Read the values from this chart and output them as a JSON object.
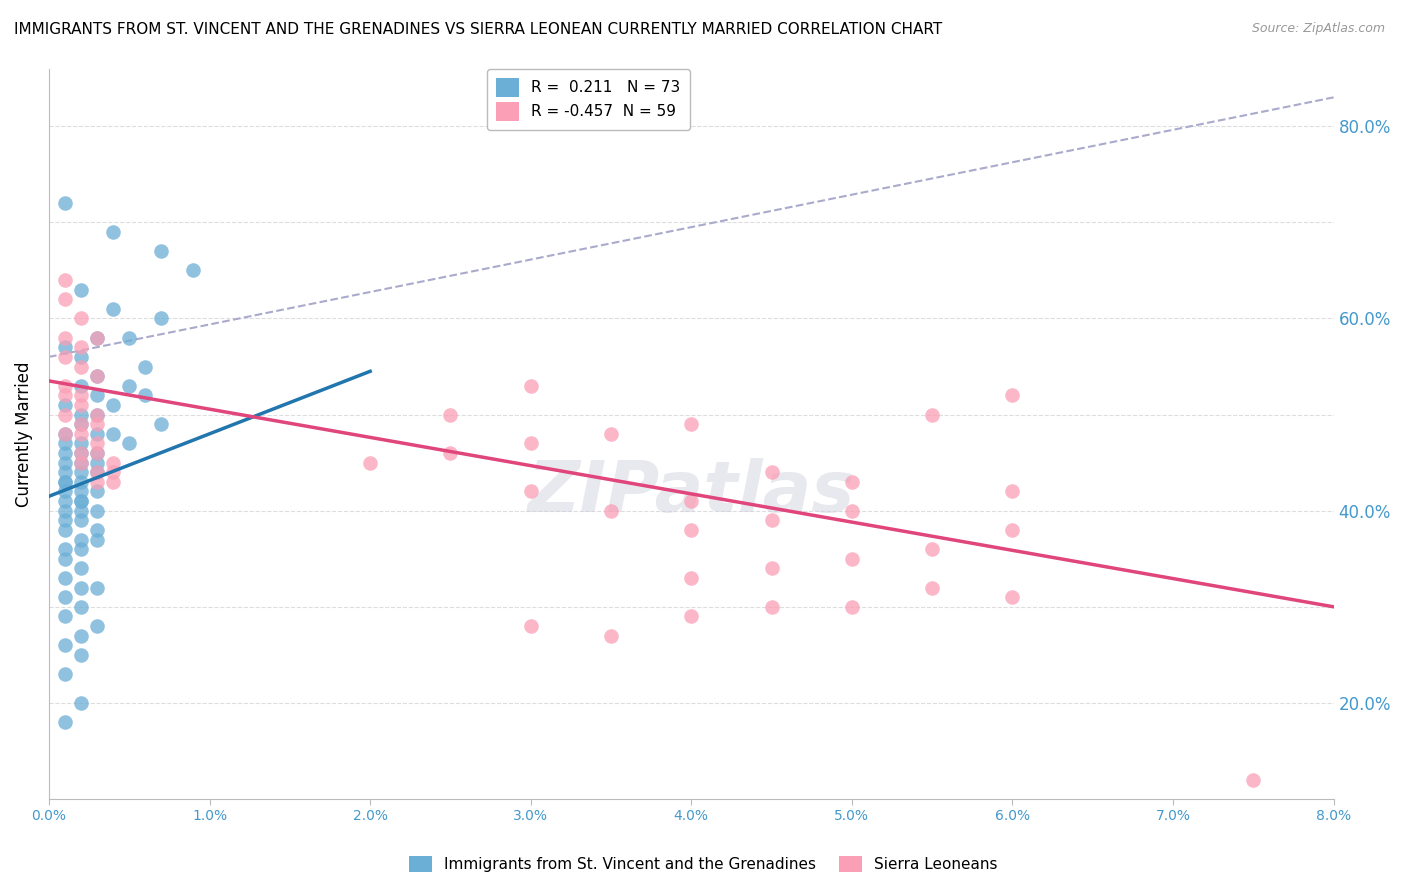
{
  "title": "IMMIGRANTS FROM ST. VINCENT AND THE GRENADINES VS SIERRA LEONEAN CURRENTLY MARRIED CORRELATION CHART",
  "source": "Source: ZipAtlas.com",
  "ylabel": "Currently Married",
  "right_ytick_labels": [
    "20.0%",
    "40.0%",
    "60.0%",
    "80.0%"
  ],
  "right_ytick_values": [
    0.2,
    0.4,
    0.6,
    0.8
  ],
  "x_min": 0.0,
  "x_max": 0.08,
  "y_min": 0.1,
  "y_max": 0.86,
  "blue_R": 0.211,
  "blue_N": 73,
  "pink_R": -0.457,
  "pink_N": 59,
  "blue_color": "#6baed6",
  "pink_color": "#fa9fb5",
  "blue_label": "Immigrants from St. Vincent and the Grenadines",
  "pink_label": "Sierra Leoneans",
  "watermark": "ZIPatlas",
  "blue_scatter_x": [
    0.001,
    0.004,
    0.007,
    0.009,
    0.002,
    0.004,
    0.007,
    0.005,
    0.003,
    0.001,
    0.002,
    0.006,
    0.003,
    0.005,
    0.002,
    0.003,
    0.006,
    0.004,
    0.001,
    0.002,
    0.003,
    0.007,
    0.002,
    0.004,
    0.001,
    0.003,
    0.005,
    0.001,
    0.002,
    0.003,
    0.001,
    0.002,
    0.001,
    0.002,
    0.003,
    0.001,
    0.002,
    0.003,
    0.001,
    0.002,
    0.001,
    0.002,
    0.003,
    0.001,
    0.002,
    0.001,
    0.002,
    0.003,
    0.001,
    0.002,
    0.001,
    0.002,
    0.003,
    0.001,
    0.002,
    0.003,
    0.001,
    0.002,
    0.001,
    0.002,
    0.001,
    0.002,
    0.003,
    0.001,
    0.002,
    0.001,
    0.003,
    0.002,
    0.001,
    0.002,
    0.001,
    0.002,
    0.001
  ],
  "blue_scatter_y": [
    0.72,
    0.69,
    0.67,
    0.65,
    0.63,
    0.61,
    0.6,
    0.58,
    0.58,
    0.57,
    0.56,
    0.55,
    0.54,
    0.53,
    0.53,
    0.52,
    0.52,
    0.51,
    0.51,
    0.5,
    0.5,
    0.49,
    0.49,
    0.48,
    0.48,
    0.48,
    0.47,
    0.47,
    0.47,
    0.46,
    0.46,
    0.46,
    0.45,
    0.45,
    0.45,
    0.44,
    0.44,
    0.44,
    0.43,
    0.43,
    0.43,
    0.42,
    0.42,
    0.42,
    0.41,
    0.41,
    0.41,
    0.4,
    0.4,
    0.4,
    0.39,
    0.39,
    0.38,
    0.38,
    0.37,
    0.37,
    0.36,
    0.36,
    0.35,
    0.34,
    0.33,
    0.32,
    0.32,
    0.31,
    0.3,
    0.29,
    0.28,
    0.27,
    0.26,
    0.25,
    0.23,
    0.2,
    0.18
  ],
  "pink_scatter_x": [
    0.001,
    0.001,
    0.002,
    0.003,
    0.001,
    0.002,
    0.001,
    0.002,
    0.003,
    0.001,
    0.002,
    0.001,
    0.002,
    0.003,
    0.001,
    0.002,
    0.003,
    0.001,
    0.002,
    0.003,
    0.002,
    0.003,
    0.004,
    0.002,
    0.003,
    0.004,
    0.003,
    0.004,
    0.03,
    0.025,
    0.04,
    0.035,
    0.03,
    0.025,
    0.02,
    0.045,
    0.05,
    0.03,
    0.04,
    0.035,
    0.06,
    0.055,
    0.06,
    0.05,
    0.045,
    0.04,
    0.06,
    0.055,
    0.05,
    0.045,
    0.04,
    0.055,
    0.06,
    0.05,
    0.045,
    0.04,
    0.03,
    0.035,
    0.075
  ],
  "pink_scatter_y": [
    0.64,
    0.62,
    0.6,
    0.58,
    0.58,
    0.57,
    0.56,
    0.55,
    0.54,
    0.53,
    0.52,
    0.52,
    0.51,
    0.5,
    0.5,
    0.49,
    0.49,
    0.48,
    0.48,
    0.47,
    0.46,
    0.46,
    0.45,
    0.45,
    0.44,
    0.44,
    0.43,
    0.43,
    0.53,
    0.5,
    0.49,
    0.48,
    0.47,
    0.46,
    0.45,
    0.44,
    0.43,
    0.42,
    0.41,
    0.4,
    0.52,
    0.5,
    0.42,
    0.4,
    0.39,
    0.38,
    0.38,
    0.36,
    0.35,
    0.34,
    0.33,
    0.32,
    0.31,
    0.3,
    0.3,
    0.29,
    0.28,
    0.27,
    0.12
  ],
  "blue_line_x": [
    0.0,
    0.02
  ],
  "blue_line_y": [
    0.415,
    0.545
  ],
  "pink_line_x": [
    0.0,
    0.08
  ],
  "pink_line_y": [
    0.535,
    0.3
  ],
  "dashed_line_x": [
    0.0,
    0.08
  ],
  "dashed_line_y": [
    0.56,
    0.83
  ]
}
